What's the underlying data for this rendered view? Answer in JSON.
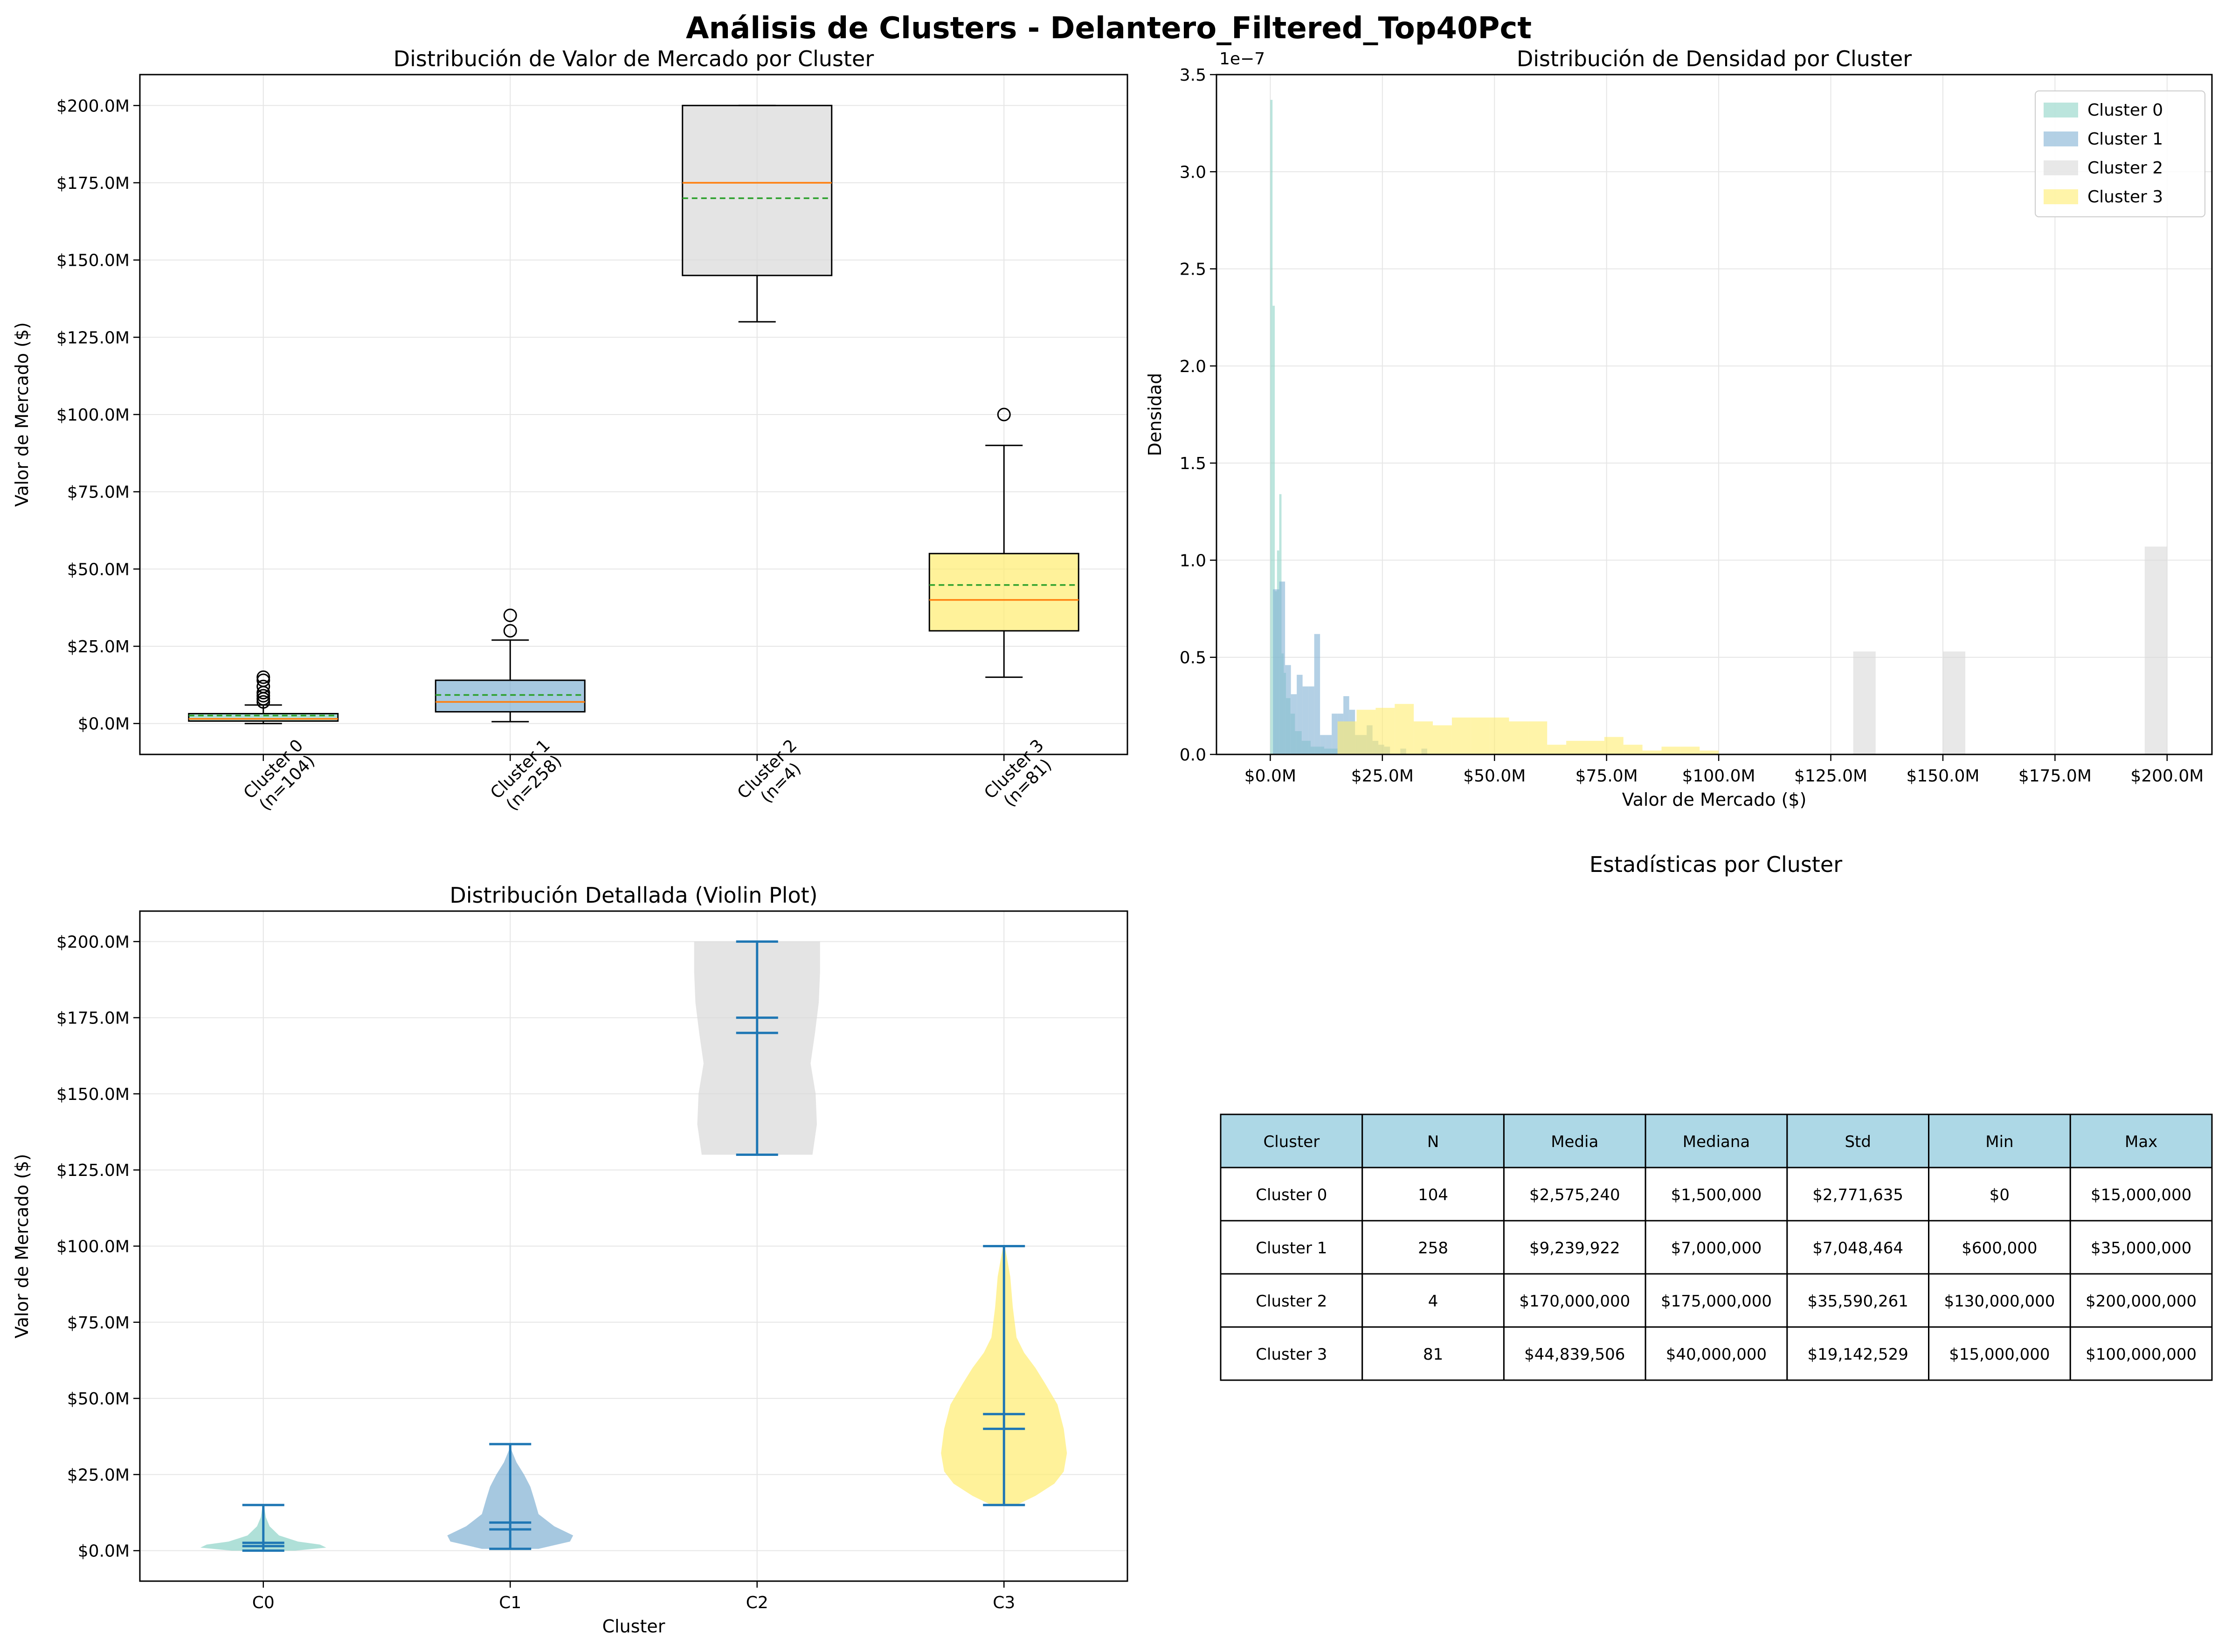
{
  "figure_title": "Análisis de Clusters - Delantero_Filtered_Top40Pct",
  "colors": {
    "cluster0": "#8dd3c7",
    "cluster1": "#80b1d3",
    "cluster2": "#d9d9d9",
    "cluster3": "#ffed6f",
    "median_line": "#ff7f0e",
    "mean_line": "#2ca02c",
    "violin_lines": "#1f77b4",
    "table_header": "#add8e6",
    "grid": "#e6e6e6"
  },
  "chart_data": [
    {
      "type": "box",
      "title": "Distribución de Valor de Mercado por Cluster",
      "ylabel": "Valor de Mercado ($)",
      "xlabel": "",
      "ylim": [
        -10000000,
        210000000
      ],
      "yticks": [
        0,
        25000000,
        50000000,
        75000000,
        100000000,
        125000000,
        150000000,
        175000000,
        200000000
      ],
      "ytick_labels": [
        "$0.0M",
        "$25.0M",
        "$50.0M",
        "$75.0M",
        "$100.0M",
        "$125.0M",
        "$150.0M",
        "$175.0M",
        "$200.0M"
      ],
      "grid": true,
      "categories": [
        "Cluster 0\n(n=104)",
        "Cluster 1\n(n=258)",
        "Cluster 2\n(n=4)",
        "Cluster 3\n(n=81)"
      ],
      "boxes": [
        {
          "whisker_low": 0,
          "q1": 800000,
          "median": 1500000,
          "mean": 2575240,
          "q3": 3200000,
          "whisker_high": 6000000,
          "outliers": [
            7000000,
            8000000,
            9000000,
            10000000,
            12000000,
            14000000,
            15000000
          ]
        },
        {
          "whisker_low": 600000,
          "q1": 3800000,
          "median": 7000000,
          "mean": 9239922,
          "q3": 14000000,
          "whisker_high": 27000000,
          "outliers": [
            30000000,
            35000000
          ]
        },
        {
          "whisker_low": 130000000,
          "q1": 145000000,
          "median": 175000000,
          "mean": 170000000,
          "q3": 200000000,
          "whisker_high": 200000000,
          "outliers": []
        },
        {
          "whisker_low": 15000000,
          "q1": 30000000,
          "median": 40000000,
          "mean": 44839506,
          "q3": 55000000,
          "whisker_high": 90000000,
          "outliers": [
            100000000
          ]
        }
      ]
    },
    {
      "type": "histogram",
      "title": "Distribución de Densidad por Cluster",
      "xlabel": "Valor de Mercado ($)",
      "ylabel": "Densidad",
      "y_scale_label": "1e−7",
      "xlim": [
        -12000000,
        210000000
      ],
      "ylim": [
        0,
        3.5
      ],
      "xticks": [
        0,
        25000000,
        50000000,
        75000000,
        100000000,
        125000000,
        150000000,
        175000000,
        200000000
      ],
      "xtick_labels": [
        "$0.0M",
        "$25.0M",
        "$50.0M",
        "$75.0M",
        "$100.0M",
        "$125.0M",
        "$150.0M",
        "$175.0M",
        "$200.0M"
      ],
      "yticks": [
        0,
        0.5,
        1.0,
        1.5,
        2.0,
        2.5,
        3.0,
        3.5
      ],
      "ytick_labels": [
        "0.0",
        "0.5",
        "1.0",
        "1.5",
        "2.0",
        "2.5",
        "3.0",
        "3.5"
      ],
      "grid": true,
      "legend_position": "top-right",
      "series": [
        {
          "name": "Cluster 0",
          "bins": [
            [
              0,
              500000,
              3.37
            ],
            [
              500000,
              1000000,
              2.31
            ],
            [
              1000000,
              1500000,
              0.84
            ],
            [
              1500000,
              2000000,
              1.05
            ],
            [
              2000000,
              2500000,
              1.34
            ],
            [
              2500000,
              3000000,
              0.52
            ],
            [
              3000000,
              3500000,
              0.42
            ],
            [
              3500000,
              4500000,
              0.29
            ],
            [
              4500000,
              5500000,
              0.21
            ],
            [
              5500000,
              7000000,
              0.12
            ],
            [
              7000000,
              9000000,
              0.07
            ],
            [
              9000000,
              12000000,
              0.04
            ],
            [
              12000000,
              15000000,
              0.03
            ]
          ]
        },
        {
          "name": "Cluster 1",
          "bins": [
            [
              600000,
              2000000,
              0.85
            ],
            [
              2000000,
              3300000,
              0.89
            ],
            [
              3300000,
              4600000,
              0.46
            ],
            [
              4600000,
              5900000,
              0.31
            ],
            [
              5900000,
              7200000,
              0.41
            ],
            [
              7200000,
              8500000,
              0.35
            ],
            [
              8500000,
              9800000,
              0.35
            ],
            [
              9800000,
              11100000,
              0.62
            ],
            [
              11100000,
              12400000,
              0.1
            ],
            [
              12400000,
              13700000,
              0.1
            ],
            [
              13700000,
              15000000,
              0.21
            ],
            [
              15000000,
              16300000,
              0.21
            ],
            [
              16300000,
              17600000,
              0.3
            ],
            [
              17600000,
              18900000,
              0.23
            ],
            [
              18900000,
              20200000,
              0.1
            ],
            [
              20200000,
              21500000,
              0.1
            ],
            [
              21500000,
              22800000,
              0.15
            ],
            [
              22800000,
              24100000,
              0.07
            ],
            [
              24100000,
              25400000,
              0.05
            ],
            [
              25400000,
              26700000,
              0.04
            ],
            [
              29000000,
              30300000,
              0.03
            ],
            [
              33700000,
              35000000,
              0.03
            ]
          ]
        },
        {
          "name": "Cluster 2",
          "bins": [
            [
              130000000,
              135000000,
              0.53
            ],
            [
              150000000,
              155000000,
              0.53
            ],
            [
              195000000,
              200000000,
              1.07
            ]
          ]
        },
        {
          "name": "Cluster 3",
          "bins": [
            [
              15000000,
              19250000,
              0.17
            ],
            [
              19250000,
              23500000,
              0.23
            ],
            [
              23500000,
              27750000,
              0.24
            ],
            [
              27750000,
              32000000,
              0.26
            ],
            [
              32000000,
              36250000,
              0.17
            ],
            [
              36250000,
              40500000,
              0.15
            ],
            [
              40500000,
              44750000,
              0.19
            ],
            [
              44750000,
              49000000,
              0.19
            ],
            [
              49000000,
              53250000,
              0.19
            ],
            [
              53250000,
              57500000,
              0.17
            ],
            [
              57500000,
              61750000,
              0.17
            ],
            [
              61750000,
              66000000,
              0.05
            ],
            [
              66000000,
              70250000,
              0.07
            ],
            [
              70250000,
              74500000,
              0.07
            ],
            [
              74500000,
              78750000,
              0.09
            ],
            [
              78750000,
              83000000,
              0.05
            ],
            [
              83000000,
              87250000,
              0.02
            ],
            [
              87250000,
              91500000,
              0.04
            ],
            [
              91500000,
              95750000,
              0.04
            ],
            [
              95750000,
              100000000,
              0.02
            ]
          ]
        }
      ]
    },
    {
      "type": "violin",
      "title": "Distribución Detallada (Violin Plot)",
      "xlabel": "Cluster",
      "ylabel": "Valor de Mercado ($)",
      "ylim": [
        -10000000,
        210000000
      ],
      "yticks": [
        0,
        25000000,
        50000000,
        75000000,
        100000000,
        125000000,
        150000000,
        175000000,
        200000000
      ],
      "ytick_labels": [
        "$0.0M",
        "$25.0M",
        "$50.0M",
        "$75.0M",
        "$100.0M",
        "$125.0M",
        "$150.0M",
        "$175.0M",
        "$200.0M"
      ],
      "grid": true,
      "categories": [
        "C0",
        "C1",
        "C2",
        "C3"
      ],
      "violins": [
        {
          "min": 0,
          "max": 15000000,
          "mean": 2575240,
          "median": 1500000,
          "profile": [
            [
              0,
              0.5
            ],
            [
              1000000,
              1.0
            ],
            [
              2000000,
              0.9
            ],
            [
              3000000,
              0.55
            ],
            [
              5000000,
              0.25
            ],
            [
              8000000,
              0.1
            ],
            [
              11000000,
              0.04
            ],
            [
              15000000,
              0.01
            ]
          ]
        },
        {
          "min": 600000,
          "max": 35000000,
          "mean": 9239922,
          "median": 7000000,
          "profile": [
            [
              600000,
              0.45
            ],
            [
              3000000,
              0.95
            ],
            [
              5000000,
              1.0
            ],
            [
              8000000,
              0.7
            ],
            [
              12000000,
              0.45
            ],
            [
              17000000,
              0.38
            ],
            [
              21000000,
              0.32
            ],
            [
              25000000,
              0.22
            ],
            [
              29000000,
              0.1
            ],
            [
              33000000,
              0.02
            ],
            [
              35000000,
              0.01
            ]
          ]
        },
        {
          "min": 130000000,
          "max": 200000000,
          "mean": 170000000,
          "median": 175000000,
          "profile": [
            [
              130000000,
              0.88
            ],
            [
              140000000,
              0.95
            ],
            [
              150000000,
              0.93
            ],
            [
              160000000,
              0.85
            ],
            [
              170000000,
              0.92
            ],
            [
              180000000,
              0.98
            ],
            [
              190000000,
              1.0
            ],
            [
              200000000,
              1.0
            ]
          ]
        },
        {
          "min": 15000000,
          "max": 100000000,
          "mean": 44839506,
          "median": 40000000,
          "profile": [
            [
              15000000,
              0.2
            ],
            [
              18000000,
              0.5
            ],
            [
              22000000,
              0.8
            ],
            [
              26000000,
              0.95
            ],
            [
              32000000,
              1.0
            ],
            [
              40000000,
              0.95
            ],
            [
              48000000,
              0.85
            ],
            [
              55000000,
              0.65
            ],
            [
              60000000,
              0.5
            ],
            [
              65000000,
              0.32
            ],
            [
              70000000,
              0.2
            ],
            [
              80000000,
              0.14
            ],
            [
              90000000,
              0.1
            ],
            [
              97000000,
              0.04
            ],
            [
              100000000,
              0.01
            ]
          ]
        }
      ]
    },
    {
      "type": "table",
      "title": "Estadísticas por Cluster",
      "columns": [
        "Cluster",
        "N",
        "Media",
        "Mediana",
        "Std",
        "Min",
        "Max"
      ],
      "rows": [
        [
          "Cluster 0",
          "104",
          "$2,575,240",
          "$1,500,000",
          "$2,771,635",
          "$0",
          "$15,000,000"
        ],
        [
          "Cluster 1",
          "258",
          "$9,239,922",
          "$7,000,000",
          "$7,048,464",
          "$600,000",
          "$35,000,000"
        ],
        [
          "Cluster 2",
          "4",
          "$170,000,000",
          "$175,000,000",
          "$35,590,261",
          "$130,000,000",
          "$200,000,000"
        ],
        [
          "Cluster 3",
          "81",
          "$44,839,506",
          "$40,000,000",
          "$19,142,529",
          "$15,000,000",
          "$100,000,000"
        ]
      ]
    }
  ]
}
